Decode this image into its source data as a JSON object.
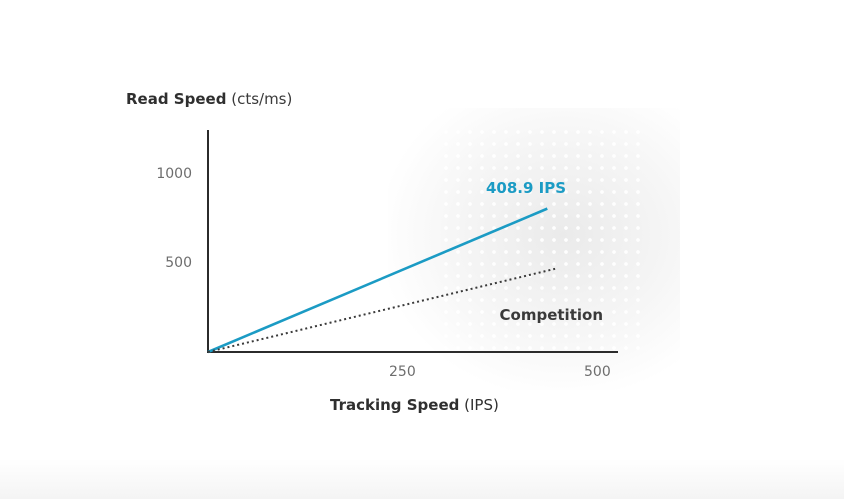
{
  "chart_data": {
    "type": "line",
    "ylabel": {
      "main": "Read Speed",
      "unit": "(cts/ms)"
    },
    "xlabel": {
      "main": "Tracking Speed",
      "unit": "(IPS)"
    },
    "xlim": [
      0,
      500
    ],
    "ylim": [
      0,
      1200
    ],
    "x_ticks": [
      {
        "value": 250,
        "label": "250"
      },
      {
        "value": 500,
        "label": "500"
      }
    ],
    "y_ticks": [
      {
        "value": 500,
        "label": "500"
      },
      {
        "value": 1000,
        "label": "1000"
      }
    ],
    "series": [
      {
        "name": "408.9 IPS",
        "color": "#1b9bc4",
        "style": "solid",
        "points": [
          [
            0,
            0
          ],
          [
            435,
            810
          ]
        ]
      },
      {
        "name": "Competition",
        "color": "#3a3a3a",
        "style": "dotted",
        "points": [
          [
            0,
            0
          ],
          [
            445,
            470
          ]
        ]
      }
    ],
    "grid": false,
    "legend": "inline labels"
  }
}
